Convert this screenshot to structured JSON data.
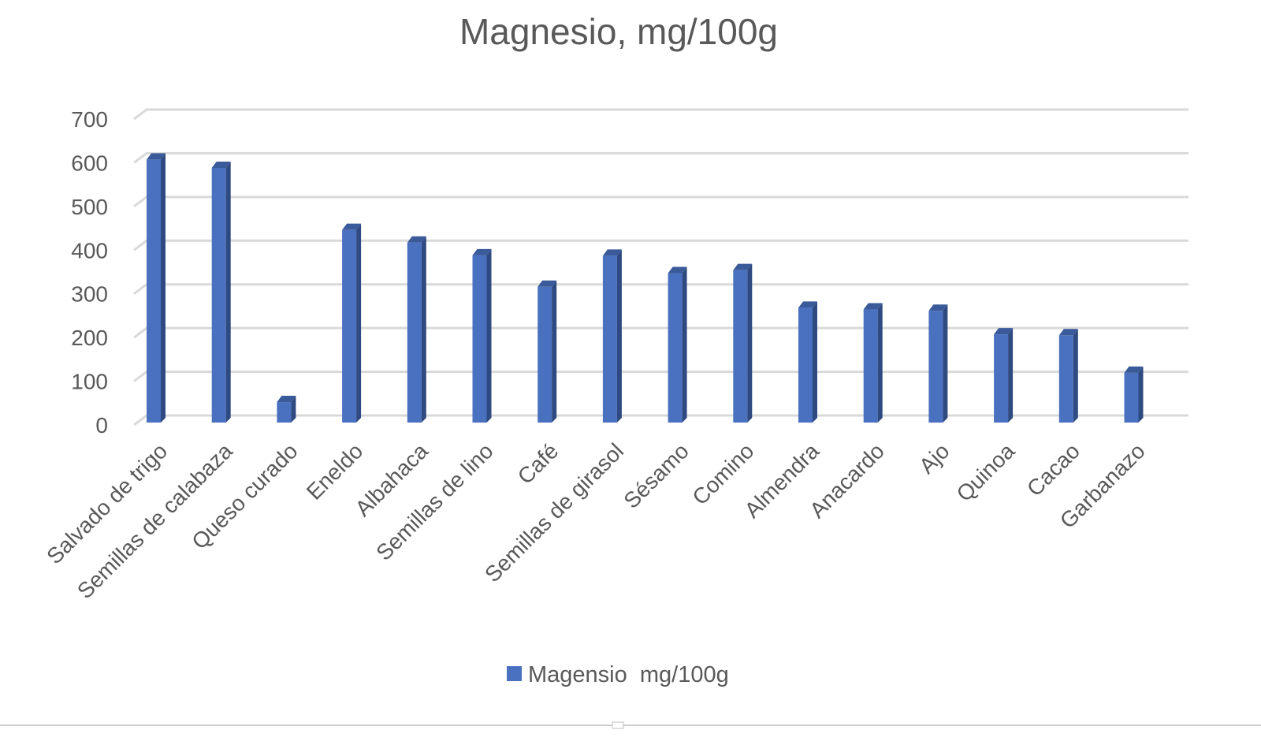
{
  "chart_data": {
    "type": "bar",
    "title": "Magnesio, mg/100g",
    "xlabel": "",
    "ylabel": "",
    "ylim": [
      0,
      700
    ],
    "yticks": [
      0,
      100,
      200,
      300,
      400,
      500,
      600,
      700
    ],
    "grid": true,
    "legend_position": "bottom",
    "categories": [
      "Salvado de trigo",
      "Semillas de calabaza",
      "Queso curado",
      "Eneldo",
      "Albahaca",
      "Semillas de lino",
      "Café",
      "Semillas de girasol",
      "Sésamo",
      "Comino",
      "Almendra",
      "Anacardo",
      "Ajo",
      "Quinoa",
      "Cacao",
      "Garbanazo"
    ],
    "series": [
      {
        "name": "Magensio  mg/100g",
        "color": "#4a70c0",
        "values": [
          600,
          581,
          45,
          439,
          410,
          381,
          309,
          380,
          340,
          347,
          261,
          257,
          254,
          200,
          198,
          112
        ]
      }
    ]
  }
}
